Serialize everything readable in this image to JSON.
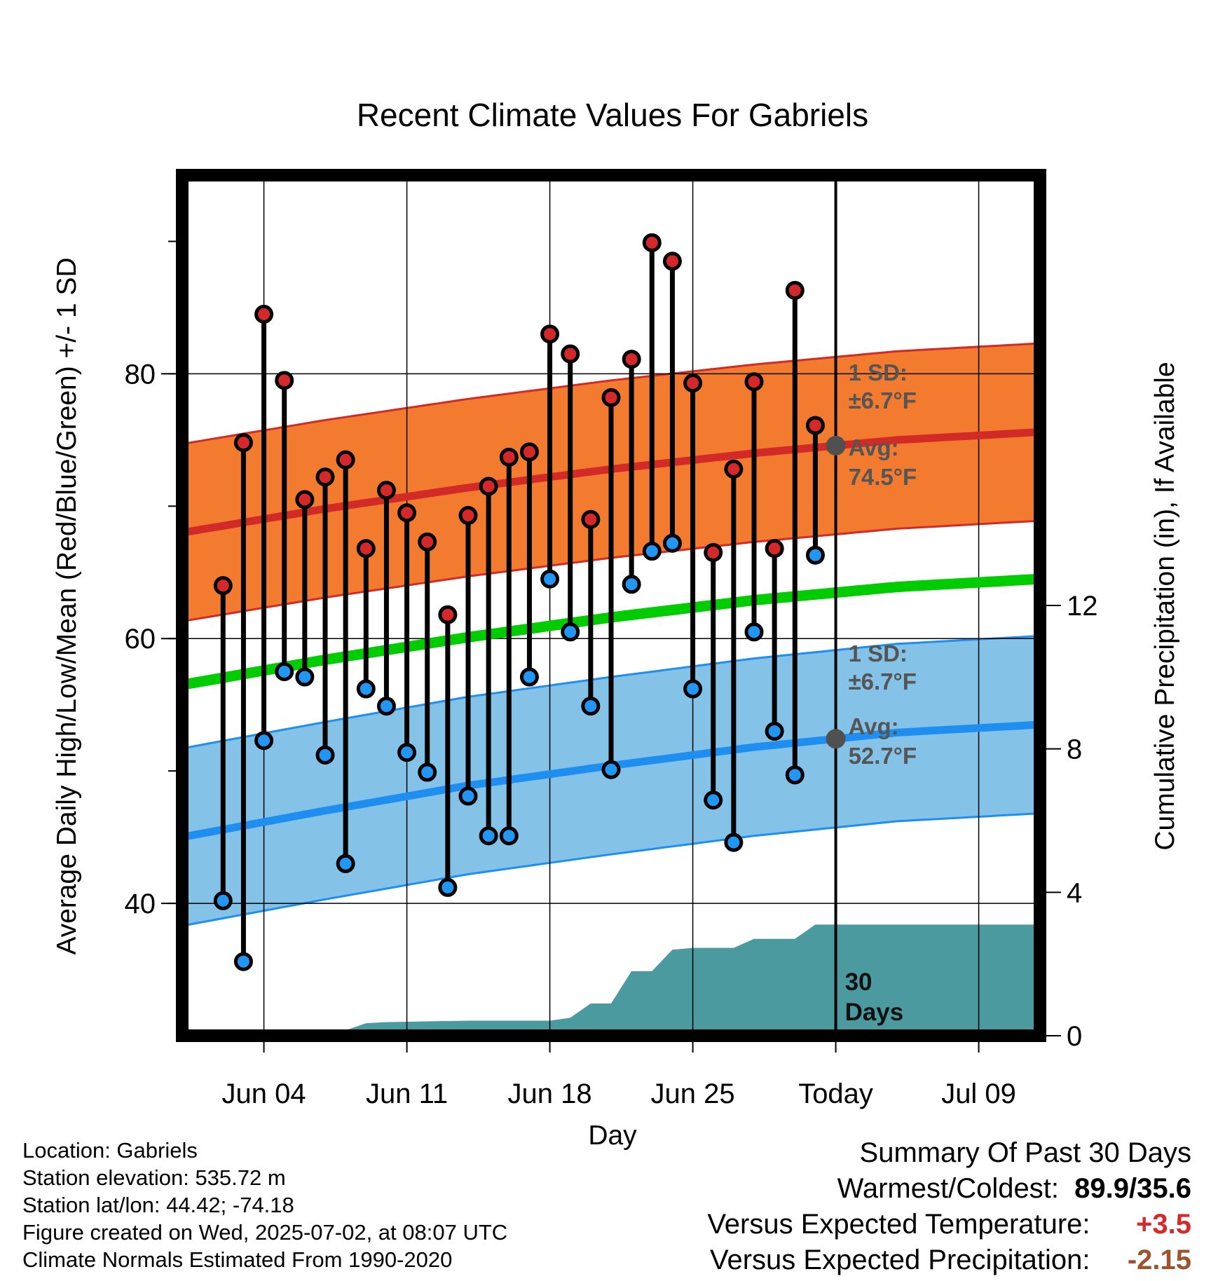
{
  "chart_data": {
    "type": "line",
    "title": "Recent Climate Values For Gabriels",
    "xlabel": "Day",
    "ylabel": "Average Daily High/Low/Mean (Red/Blue/Green) +/- 1 SD",
    "y2label": "Cumulative Precipitation (in), If Available",
    "ylim": [
      30,
      95
    ],
    "y2lim": [
      0,
      24
    ],
    "xlim": [
      "2025-05-31",
      "2025-07-12"
    ],
    "x_ticks": [
      "Jun 04",
      "Jun 11",
      "Jun 18",
      "Jun 25",
      "Today",
      "Jul 09"
    ],
    "x_tick_dates": [
      "2025-06-04",
      "2025-06-11",
      "2025-06-18",
      "2025-06-25",
      "2025-07-02",
      "2025-07-09"
    ],
    "y_ticks": [
      "40",
      "60",
      "80"
    ],
    "y2_ticks": [
      "0",
      "4",
      "8",
      "12"
    ],
    "grid": true,
    "today_line": "2025-07-02",
    "high_label_sd": "1 SD:",
    "high_label_sd_val": "±6.7°F",
    "high_label_avg": "Avg:",
    "high_label_avg_val": "74.5°F",
    "low_label_sd": "1 SD:",
    "low_label_sd_val": "±6.7°F",
    "low_label_avg": "Avg:",
    "low_label_avg_val": "52.7°F",
    "period_label_1": "30",
    "period_label_2": "Days",
    "normal_dates": [
      "2025-05-31",
      "2025-06-07",
      "2025-06-14",
      "2025-06-21",
      "2025-06-28",
      "2025-07-05",
      "2025-07-12"
    ],
    "normal_high": [
      68.0,
      69.8,
      71.4,
      72.8,
      74.0,
      75.0,
      75.6
    ],
    "normal_low": [
      45.0,
      47.0,
      48.9,
      50.4,
      51.8,
      52.9,
      53.5
    ],
    "normal_mean": [
      56.5,
      58.4,
      60.1,
      61.6,
      62.9,
      63.9,
      64.5
    ],
    "sd": 6.7,
    "obs_dates": [
      "2025-06-02",
      "2025-06-03",
      "2025-06-04",
      "2025-06-05",
      "2025-06-06",
      "2025-06-07",
      "2025-06-08",
      "2025-06-09",
      "2025-06-10",
      "2025-06-11",
      "2025-06-12",
      "2025-06-13",
      "2025-06-14",
      "2025-06-15",
      "2025-06-16",
      "2025-06-17",
      "2025-06-18",
      "2025-06-19",
      "2025-06-20",
      "2025-06-21",
      "2025-06-22",
      "2025-06-23",
      "2025-06-24",
      "2025-06-25",
      "2025-06-26",
      "2025-06-27",
      "2025-06-28",
      "2025-06-29",
      "2025-06-30",
      "2025-07-01"
    ],
    "obs_high": [
      64.0,
      74.8,
      84.5,
      79.5,
      70.5,
      72.2,
      73.5,
      66.8,
      71.2,
      69.5,
      67.3,
      61.8,
      69.3,
      71.5,
      73.7,
      74.1,
      83.0,
      81.5,
      69.0,
      78.2,
      81.1,
      89.9,
      88.5,
      79.3,
      66.5,
      72.8,
      79.4,
      66.8,
      86.3,
      76.1
    ],
    "obs_low": [
      40.2,
      35.6,
      52.3,
      57.5,
      57.1,
      51.2,
      43.0,
      56.2,
      54.9,
      51.4,
      49.9,
      41.2,
      48.1,
      45.1,
      45.1,
      57.1,
      64.5,
      60.5,
      54.9,
      50.1,
      64.1,
      66.6,
      67.2,
      56.2,
      47.8,
      44.6,
      60.5,
      53.0,
      49.7,
      66.3
    ],
    "precip_dates": [
      "2025-05-31",
      "2025-06-03",
      "2025-06-04",
      "2025-06-05",
      "2025-06-07",
      "2025-06-08",
      "2025-06-09",
      "2025-06-10",
      "2025-06-12",
      "2025-06-14",
      "2025-06-18",
      "2025-06-19",
      "2025-06-20",
      "2025-06-21",
      "2025-06-22",
      "2025-06-23",
      "2025-06-24",
      "2025-06-25",
      "2025-06-26",
      "2025-06-27",
      "2025-06-28",
      "2025-06-29",
      "2025-06-30",
      "2025-07-01",
      "2025-07-12"
    ],
    "precip_cum": [
      0,
      0,
      0,
      0.1,
      0.1,
      0.15,
      0.35,
      0.38,
      0.4,
      0.42,
      0.42,
      0.5,
      0.9,
      0.9,
      1.8,
      1.8,
      2.4,
      2.45,
      2.45,
      2.45,
      2.7,
      2.7,
      2.7,
      3.1,
      3.1
    ]
  },
  "colors": {
    "high_band": "#f27b2f",
    "high_line": "#d22a26",
    "low_band": "#85c2e8",
    "low_line": "#1e8ef0",
    "mean_line": "#00cc00",
    "precip": "#4a9aa0",
    "marker_high": "#d4282a",
    "marker_low": "#2196f3",
    "avg_marker": "#505050",
    "annotation": "#555555",
    "warm_value": "#d42a2a",
    "precip_value": "#a0522d"
  },
  "footer": {
    "location": "Location: Gabriels",
    "elevation": "Station elevation: 535.72 m",
    "latlon": "Station lat/lon: 44.42; -74.18",
    "created": "Figure created on Wed, 2025-07-02, at 08:07 UTC",
    "normals": "Climate Normals Estimated From 1990-2020"
  },
  "summary": {
    "title": "Summary Of Past 30 Days",
    "warm_cold_label": "Warmest/Coldest:",
    "warm_cold_value": "89.9/35.6",
    "temp_label": "Versus Expected Temperature:",
    "temp_value": "+3.5",
    "precip_label": "Versus Expected Precipitation:",
    "precip_value": "-2.15"
  }
}
